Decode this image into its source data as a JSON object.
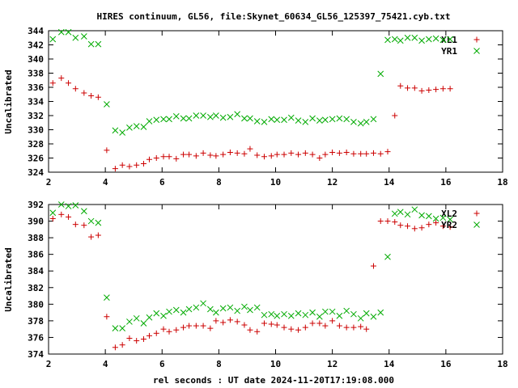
{
  "chart_data": {
    "title": "HIRES continuum, GL56, file:Skynet_60634_GL56_125397_75421.cyb.txt",
    "xlabel": "rel seconds : UT date 2024-11-20T17:19:08.000",
    "type": "scatter",
    "plots": [
      {
        "type": "scatter",
        "ylabel": "Uncalibrated",
        "xlim": [
          2,
          18
        ],
        "ylim": [
          324,
          344
        ],
        "xticks": [
          2,
          4,
          6,
          8,
          10,
          12,
          14,
          16,
          18
        ],
        "yticks": [
          324,
          326,
          328,
          330,
          332,
          334,
          336,
          338,
          340,
          342,
          344
        ],
        "legend_position": "top-right",
        "series": [
          {
            "name": "XL1",
            "marker": "plus",
            "color": "#cc0000",
            "x": [
              2.15,
              2.45,
              2.7,
              2.95,
              3.25,
              3.5,
              3.75,
              4.05,
              4.35,
              4.6,
              4.85,
              5.1,
              5.35,
              5.55,
              5.8,
              6.05,
              6.25,
              6.5,
              6.75,
              6.95,
              7.2,
              7.45,
              7.7,
              7.9,
              8.15,
              8.4,
              8.65,
              8.9,
              9.1,
              9.35,
              9.6,
              9.85,
              10.05,
              10.3,
              10.55,
              10.8,
              11.05,
              11.3,
              11.55,
              11.75,
              12.0,
              12.25,
              12.5,
              12.75,
              13.0,
              13.2,
              13.45,
              13.7,
              13.95,
              14.2,
              14.4,
              14.65,
              14.9,
              15.15,
              15.4,
              15.65,
              15.9,
              16.15
            ],
            "y": [
              336.6,
              337.3,
              336.6,
              335.8,
              335.2,
              334.8,
              334.6,
              327.1,
              324.5,
              325.0,
              324.8,
              325.0,
              325.2,
              325.8,
              326.0,
              326.2,
              326.2,
              325.9,
              326.5,
              326.5,
              326.3,
              326.7,
              326.4,
              326.3,
              326.5,
              326.8,
              326.7,
              326.6,
              327.3,
              326.4,
              326.2,
              326.3,
              326.5,
              326.5,
              326.7,
              326.5,
              326.7,
              326.5,
              326.0,
              326.5,
              326.8,
              326.7,
              326.8,
              326.6,
              326.6,
              326.6,
              326.7,
              326.6,
              326.9,
              332.0,
              336.2,
              335.9,
              335.9,
              335.5,
              335.6,
              335.7,
              335.8,
              335.8
            ]
          },
          {
            "name": "YR1",
            "marker": "cross",
            "color": "#00aa00",
            "x": [
              2.15,
              2.45,
              2.7,
              2.95,
              3.25,
              3.5,
              3.75,
              4.05,
              4.35,
              4.6,
              4.85,
              5.1,
              5.35,
              5.55,
              5.8,
              6.05,
              6.25,
              6.5,
              6.75,
              6.95,
              7.2,
              7.45,
              7.7,
              7.9,
              8.15,
              8.4,
              8.65,
              8.9,
              9.1,
              9.35,
              9.6,
              9.85,
              10.05,
              10.3,
              10.55,
              10.8,
              11.05,
              11.3,
              11.55,
              11.75,
              12.0,
              12.25,
              12.5,
              12.75,
              13.0,
              13.2,
              13.45,
              13.7,
              13.95,
              14.2,
              14.4,
              14.65,
              14.9,
              15.15,
              15.4,
              15.65,
              15.9,
              16.15
            ],
            "y": [
              342.8,
              343.8,
              343.8,
              343.0,
              343.2,
              342.1,
              342.1,
              333.6,
              329.9,
              329.6,
              330.3,
              330.5,
              330.4,
              331.2,
              331.4,
              331.5,
              331.5,
              331.9,
              331.6,
              331.6,
              332.0,
              332.0,
              331.8,
              332.0,
              331.7,
              331.8,
              332.2,
              331.6,
              331.6,
              331.2,
              331.1,
              331.5,
              331.4,
              331.4,
              331.7,
              331.3,
              331.1,
              331.6,
              331.3,
              331.4,
              331.5,
              331.6,
              331.5,
              331.1,
              330.9,
              331.1,
              331.5,
              337.9,
              342.7,
              342.8,
              342.6,
              343.0,
              343.0,
              342.6,
              342.8,
              342.9,
              342.7,
              342.8
            ]
          }
        ]
      },
      {
        "type": "scatter",
        "ylabel": "Uncalibrated",
        "xlim": [
          2,
          18
        ],
        "ylim": [
          374,
          392
        ],
        "xticks": [
          2,
          4,
          6,
          8,
          10,
          12,
          14,
          16,
          18
        ],
        "yticks": [
          374,
          376,
          378,
          380,
          382,
          384,
          386,
          388,
          390,
          392
        ],
        "legend_position": "top-right",
        "series": [
          {
            "name": "XL2",
            "marker": "plus",
            "color": "#cc0000",
            "x": [
              2.15,
              2.45,
              2.7,
              2.95,
              3.25,
              3.5,
              3.75,
              4.05,
              4.35,
              4.6,
              4.85,
              5.1,
              5.35,
              5.55,
              5.8,
              6.05,
              6.25,
              6.5,
              6.75,
              6.95,
              7.2,
              7.45,
              7.7,
              7.9,
              8.15,
              8.4,
              8.65,
              8.9,
              9.1,
              9.35,
              9.6,
              9.85,
              10.05,
              10.3,
              10.55,
              10.8,
              11.05,
              11.3,
              11.55,
              11.75,
              12.0,
              12.25,
              12.5,
              12.75,
              13.0,
              13.2,
              13.45,
              13.7,
              13.95,
              14.2,
              14.4,
              14.65,
              14.9,
              15.15,
              15.4,
              15.65,
              15.9,
              16.15
            ],
            "y": [
              390.3,
              390.8,
              390.5,
              389.6,
              389.5,
              388.1,
              388.3,
              378.5,
              374.8,
              375.1,
              375.9,
              375.6,
              375.8,
              376.2,
              376.5,
              377.0,
              376.7,
              376.9,
              377.2,
              377.4,
              377.4,
              377.4,
              377.1,
              378.0,
              377.8,
              378.1,
              377.9,
              377.5,
              376.9,
              376.7,
              377.7,
              377.6,
              377.5,
              377.2,
              377.0,
              376.9,
              377.2,
              377.7,
              377.7,
              377.4,
              378.0,
              377.4,
              377.2,
              377.2,
              377.3,
              377.0,
              384.6,
              390.0,
              390.0,
              389.9,
              389.5,
              389.4,
              389.1,
              389.2,
              389.6,
              389.8,
              389.4,
              389.3
            ]
          },
          {
            "name": "YR2",
            "marker": "cross",
            "color": "#00aa00",
            "x": [
              2.15,
              2.45,
              2.7,
              2.95,
              3.25,
              3.5,
              3.75,
              4.05,
              4.35,
              4.6,
              4.85,
              5.1,
              5.35,
              5.55,
              5.8,
              6.05,
              6.25,
              6.5,
              6.75,
              6.95,
              7.2,
              7.45,
              7.7,
              7.9,
              8.15,
              8.4,
              8.65,
              8.9,
              9.1,
              9.35,
              9.6,
              9.85,
              10.05,
              10.3,
              10.55,
              10.8,
              11.05,
              11.3,
              11.55,
              11.75,
              12.0,
              12.25,
              12.5,
              12.75,
              13.0,
              13.2,
              13.45,
              13.7,
              13.95,
              14.2,
              14.4,
              14.65,
              14.9,
              15.15,
              15.4,
              15.65,
              15.9,
              16.15
            ],
            "y": [
              391.0,
              392.0,
              391.8,
              391.9,
              391.2,
              390.0,
              389.8,
              380.8,
              377.1,
              377.1,
              377.9,
              378.3,
              377.7,
              378.4,
              378.9,
              378.6,
              379.1,
              379.3,
              379.0,
              379.4,
              379.6,
              380.1,
              379.4,
              379.0,
              379.5,
              379.6,
              379.2,
              379.7,
              379.3,
              379.6,
              378.7,
              378.8,
              378.6,
              378.8,
              378.6,
              378.9,
              378.7,
              379.0,
              378.5,
              379.1,
              379.1,
              378.6,
              379.2,
              378.8,
              378.3,
              378.9,
              378.5,
              379.0,
              385.7,
              390.9,
              391.1,
              390.8,
              391.4,
              390.7,
              390.6,
              390.3,
              390.4,
              390.2
            ]
          }
        ]
      }
    ]
  }
}
